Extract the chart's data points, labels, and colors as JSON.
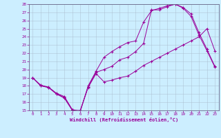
{
  "xlabel": "Windchill (Refroidissement éolien,°C)",
  "bg_color": "#cceeff",
  "line_color": "#990099",
  "xlim": [
    -0.5,
    23.5
  ],
  "ylim": [
    15,
    28
  ],
  "xticks": [
    0,
    1,
    2,
    3,
    4,
    5,
    6,
    7,
    8,
    9,
    10,
    11,
    12,
    13,
    14,
    15,
    16,
    17,
    18,
    19,
    20,
    21,
    22,
    23
  ],
  "yticks": [
    15,
    16,
    17,
    18,
    19,
    20,
    21,
    22,
    23,
    24,
    25,
    26,
    27,
    28
  ],
  "line1_x": [
    0,
    1,
    2,
    3,
    4,
    5,
    6,
    7,
    8,
    9,
    10,
    11,
    12,
    13,
    14,
    15,
    16,
    17,
    18,
    19,
    20,
    21,
    22,
    23
  ],
  "line1_y": [
    19.0,
    18.0,
    17.8,
    17.0,
    16.5,
    15.0,
    15.0,
    17.8,
    19.5,
    18.5,
    18.7,
    19.0,
    19.2,
    19.8,
    20.5,
    21.0,
    21.5,
    22.0,
    22.5,
    23.0,
    23.5,
    24.0,
    25.0,
    22.3
  ],
  "line2_x": [
    0,
    1,
    2,
    3,
    4,
    5,
    6,
    7,
    8,
    9,
    10,
    11,
    12,
    13,
    14,
    15,
    16,
    17,
    18,
    19,
    20,
    21,
    22,
    23
  ],
  "line2_y": [
    19.0,
    18.1,
    17.85,
    17.1,
    16.7,
    15.1,
    14.9,
    18.0,
    19.8,
    21.5,
    22.2,
    22.8,
    23.3,
    23.5,
    25.8,
    27.2,
    27.5,
    27.8,
    28.0,
    27.5,
    26.5,
    24.2,
    22.3,
    20.3
  ],
  "line3_x": [
    0,
    1,
    2,
    3,
    4,
    5,
    6,
    7,
    8,
    9,
    10,
    11,
    12,
    13,
    14,
    15,
    16,
    17,
    18,
    19,
    20,
    21,
    22,
    23
  ],
  "line3_y": [
    19.0,
    18.05,
    17.82,
    17.05,
    16.58,
    15.05,
    14.88,
    17.88,
    19.65,
    20.0,
    20.4,
    21.2,
    21.5,
    22.2,
    23.2,
    27.3,
    27.3,
    27.7,
    28.0,
    27.6,
    26.8,
    24.5,
    22.5,
    20.4
  ]
}
